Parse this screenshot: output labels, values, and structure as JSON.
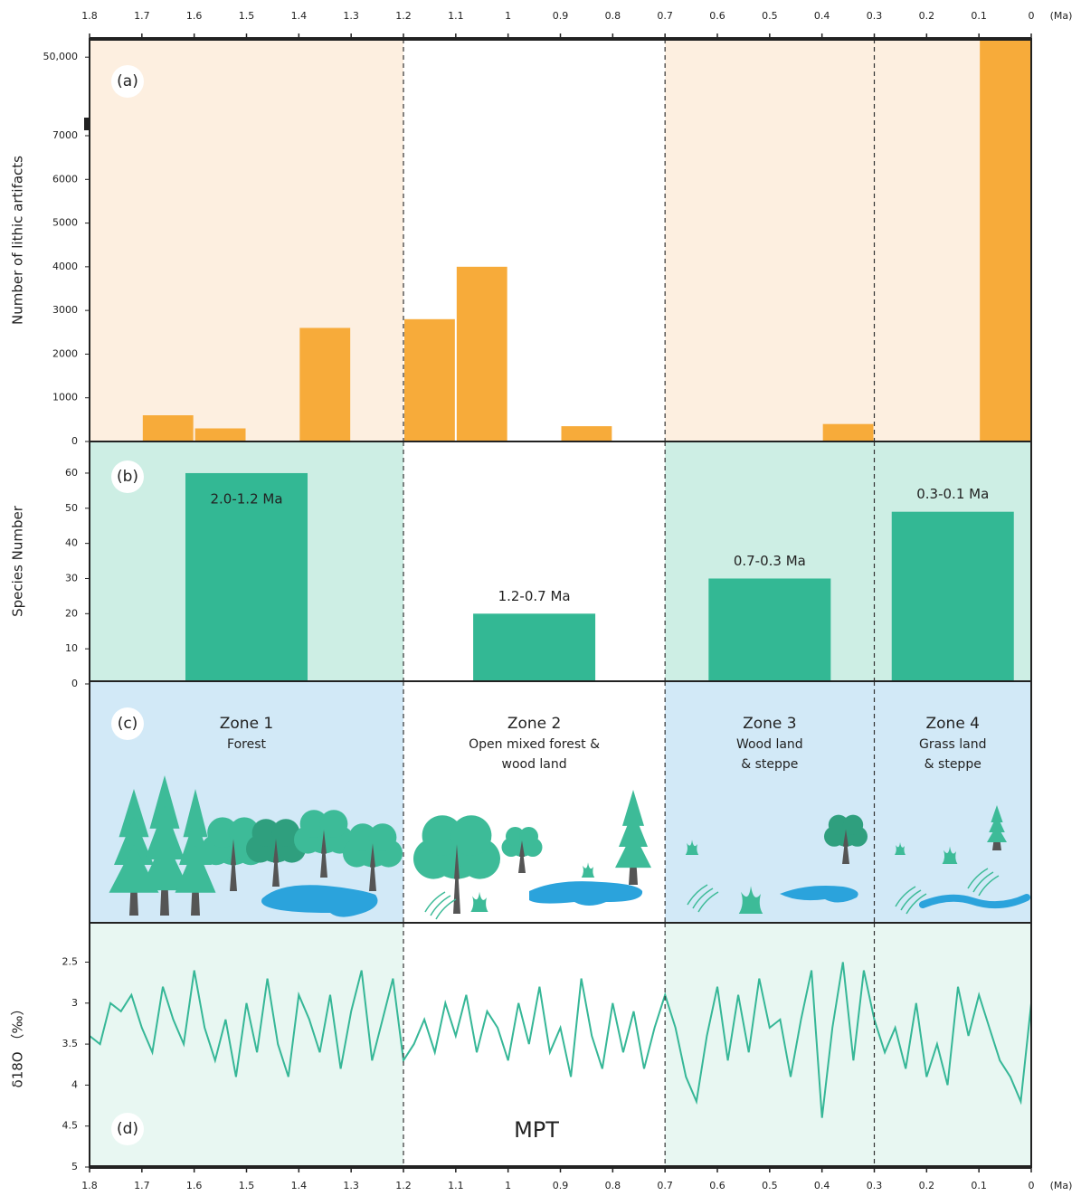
{
  "chart_data": [
    {
      "type": "bar",
      "label": "(a)",
      "ylabel": "Number of lithic artifacts",
      "xlim": [
        1.8,
        0
      ],
      "xticks": [
        1.8,
        1.7,
        1.6,
        1.5,
        1.4,
        1.3,
        1.2,
        1.1,
        1,
        0.9,
        0.8,
        0.7,
        0.6,
        0.5,
        0.4,
        0.3,
        0.2,
        0.1,
        0
      ],
      "xunit": "(Ma)",
      "ylim": [
        0,
        60000
      ],
      "axis_break": 7000,
      "yticks": [
        0,
        1000,
        2000,
        3000,
        4000,
        5000,
        6000,
        7000,
        {
          "value": 50000,
          "label": "50,000"
        }
      ],
      "x_start": [
        1.7,
        1.6,
        1.4,
        1.2,
        1.1,
        0.9,
        0.4,
        0.1
      ],
      "x_end": [
        1.6,
        1.5,
        1.3,
        1.1,
        1.0,
        0.8,
        0.3,
        0
      ],
      "values": [
        600,
        300,
        2600,
        2800,
        4000,
        350,
        400,
        60000
      ],
      "color": "#f7ab3a",
      "shade_color": "#fdefe0",
      "dividers": [
        1.2,
        0.7,
        0.3
      ],
      "shaded": [
        true,
        false,
        true,
        true
      ]
    },
    {
      "type": "zone_bar",
      "label": "(b)",
      "ylabel": "Species Number",
      "ylabel_color": "#33b894",
      "xlim": [
        1.8,
        0
      ],
      "ylim": [
        0,
        69
      ],
      "yticks": [
        0,
        10,
        20,
        30,
        40,
        50,
        60
      ],
      "categories": [
        "2.0-1.2 Ma",
        "1.2-0.7 Ma",
        "0.7-0.3 Ma",
        "0.3-0.1 Ma"
      ],
      "values": [
        60,
        20,
        30,
        49
      ],
      "color": "#33b894",
      "shade_color": "#cdeee4",
      "dividers": [
        1.2,
        0.7,
        0.3
      ],
      "shaded": [
        true,
        false,
        true,
        true
      ]
    },
    {
      "type": "illustration",
      "label": "(c)",
      "xlim": [
        1.8,
        0
      ],
      "zones": [
        {
          "title": "Zone 1",
          "lines": [
            "Forest"
          ]
        },
        {
          "title": "Zone 2",
          "lines": [
            "Open mixed forest &",
            "wood land"
          ]
        },
        {
          "title": "Zone 3",
          "lines": [
            "Wood land",
            "& steppe"
          ]
        },
        {
          "title": "Zone 4",
          "lines": [
            "Grass land",
            "& steppe"
          ]
        }
      ],
      "shade_color": "#d2e9f7",
      "dividers": [
        1.2,
        0.7,
        0.3
      ],
      "shaded": [
        true,
        false,
        true,
        true
      ]
    },
    {
      "type": "line",
      "label": "(d)",
      "ylabel": "δ18O （‰）",
      "annotation": "MPT",
      "xlim": [
        1.8,
        0
      ],
      "xticks": [
        1.8,
        1.7,
        1.6,
        1.5,
        1.4,
        1.3,
        1.2,
        1.1,
        1,
        0.9,
        0.8,
        0.7,
        0.6,
        0.5,
        0.4,
        0.3,
        0.2,
        0.1,
        0
      ],
      "xunit": "(Ma)",
      "ylim": [
        2.02,
        5
      ],
      "invert_y": true,
      "yticks": [
        2.5,
        3,
        3.5,
        4,
        4.5,
        5
      ],
      "x": [
        1.8,
        1.78,
        1.76,
        1.74,
        1.72,
        1.7,
        1.68,
        1.66,
        1.64,
        1.62,
        1.6,
        1.58,
        1.56,
        1.54,
        1.52,
        1.5,
        1.48,
        1.46,
        1.44,
        1.42,
        1.4,
        1.38,
        1.36,
        1.34,
        1.32,
        1.3,
        1.28,
        1.26,
        1.24,
        1.22,
        1.2,
        1.18,
        1.16,
        1.14,
        1.12,
        1.1,
        1.08,
        1.06,
        1.04,
        1.02,
        1.0,
        0.98,
        0.96,
        0.94,
        0.92,
        0.9,
        0.88,
        0.86,
        0.84,
        0.82,
        0.8,
        0.78,
        0.76,
        0.74,
        0.72,
        0.7,
        0.68,
        0.66,
        0.64,
        0.62,
        0.6,
        0.58,
        0.56,
        0.54,
        0.52,
        0.5,
        0.48,
        0.46,
        0.44,
        0.42,
        0.4,
        0.38,
        0.36,
        0.34,
        0.32,
        0.3,
        0.28,
        0.26,
        0.24,
        0.22,
        0.2,
        0.18,
        0.16,
        0.14,
        0.12,
        0.1,
        0.08,
        0.06,
        0.04,
        0.02,
        0
      ],
      "values": [
        3.4,
        3.5,
        3.0,
        3.1,
        2.9,
        3.3,
        3.6,
        2.8,
        3.2,
        3.5,
        2.6,
        3.3,
        3.7,
        3.2,
        3.9,
        3.0,
        3.6,
        2.7,
        3.5,
        3.9,
        2.9,
        3.2,
        3.6,
        2.9,
        3.8,
        3.1,
        2.6,
        3.7,
        3.2,
        2.7,
        3.7,
        3.5,
        3.2,
        3.6,
        3.0,
        3.4,
        2.9,
        3.6,
        3.1,
        3.3,
        3.7,
        3.0,
        3.5,
        2.8,
        3.6,
        3.3,
        3.9,
        2.7,
        3.4,
        3.8,
        3.0,
        3.6,
        3.1,
        3.8,
        3.3,
        2.9,
        3.3,
        3.9,
        4.2,
        3.4,
        2.8,
        3.7,
        2.9,
        3.6,
        2.7,
        3.3,
        3.2,
        3.9,
        3.2,
        2.6,
        4.4,
        3.3,
        2.5,
        3.7,
        2.6,
        3.2,
        3.6,
        3.3,
        3.8,
        3.0,
        3.9,
        3.5,
        4.0,
        2.8,
        3.4,
        2.9,
        3.3,
        3.7,
        3.9,
        4.2,
        3.0
      ],
      "color": "#36b797",
      "shade_color": "#e8f7f2",
      "dividers": [
        1.2,
        0.7,
        0.3
      ],
      "shaded": [
        true,
        false,
        true,
        true
      ]
    }
  ]
}
